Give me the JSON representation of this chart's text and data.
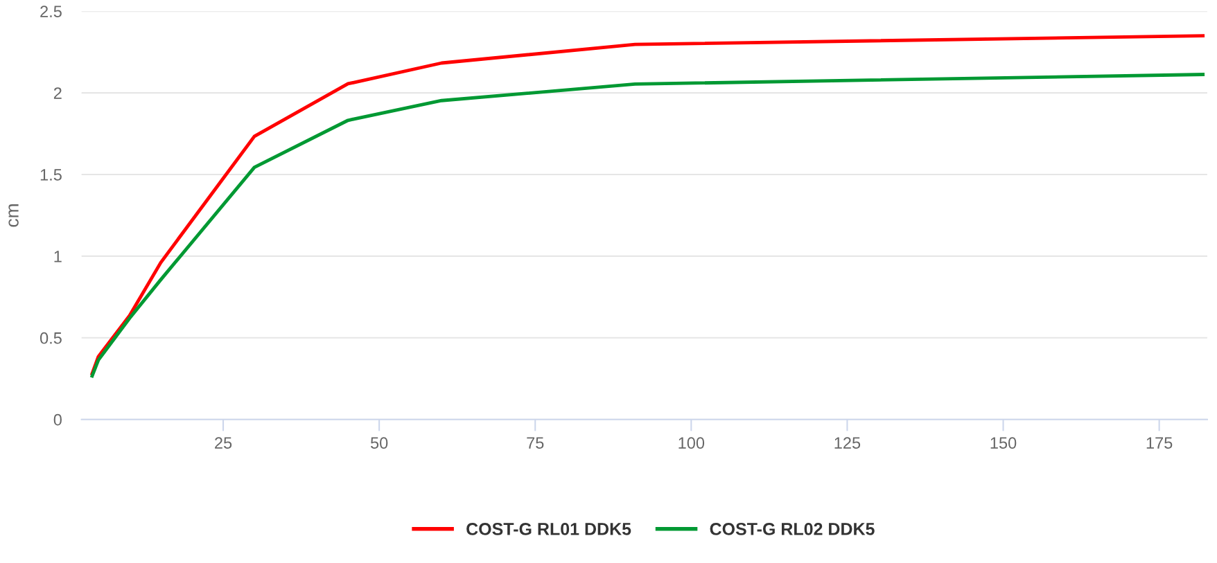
{
  "chart_data": {
    "type": "line",
    "ylabel": "cm",
    "x": [
      4,
      5,
      10,
      15,
      30,
      45,
      60,
      91,
      182
    ],
    "series": [
      {
        "name": "COST-G RL01 DDK5",
        "color": "#ff0000",
        "values": [
          0.28,
          0.385,
          0.636,
          0.961,
          1.734,
          2.056,
          2.183,
          2.297,
          2.35
        ]
      },
      {
        "name": "COST-G RL02 DDK5",
        "color": "#009933",
        "values": [
          0.266,
          0.364,
          0.62,
          0.856,
          1.544,
          1.832,
          1.953,
          2.054,
          2.113
        ]
      }
    ],
    "xlim": [
      2.3,
      182.7
    ],
    "xticks": [
      25,
      50,
      75,
      100,
      125,
      150,
      175
    ],
    "ylim": [
      0,
      2.5
    ],
    "yticks": [
      0,
      0.5,
      1,
      1.5,
      2,
      2.5
    ],
    "grid": "y",
    "legend": "bottom",
    "marker": "none",
    "line_style": "solid"
  }
}
